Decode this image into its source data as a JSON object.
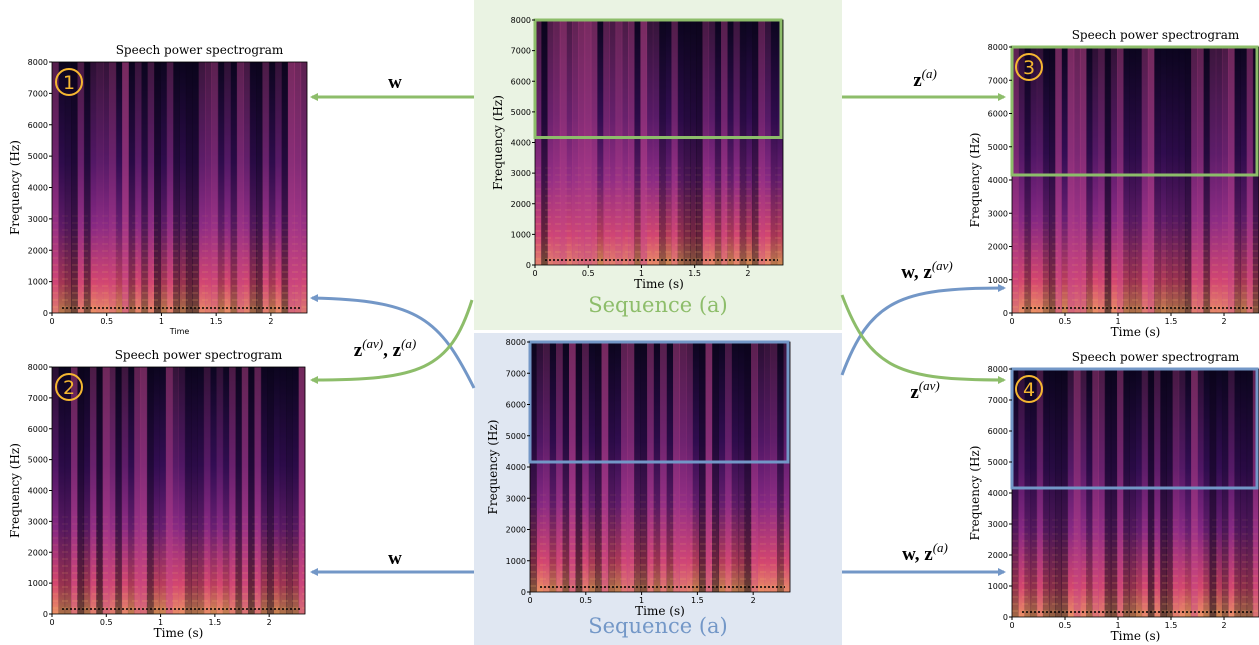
{
  "panels": [
    {
      "title": "Speech power spectrogram",
      "ylabel": "Frequency (Hz)",
      "xlabel": "Time",
      "badge": "1",
      "yticks": [
        "0",
        "1000",
        "2000",
        "3000",
        "4000",
        "5000",
        "6000",
        "7000",
        "8000"
      ],
      "xticks": [
        "0",
        "0.5",
        "1",
        "1.5",
        "2"
      ]
    },
    {
      "title": "Speech power spectrogram",
      "ylabel": "Frequency (Hz)",
      "xlabel": "Time (s)",
      "badge": "2",
      "yticks": [
        "0",
        "1000",
        "2000",
        "3000",
        "4000",
        "5000",
        "6000",
        "7000",
        "8000"
      ],
      "xticks": [
        "0",
        "0.5",
        "1",
        "1.5",
        "2"
      ]
    },
    {
      "ylabel": "Frequency (Hz)",
      "xlabel": "Time (s)",
      "caption": "Sequence (a)",
      "yticks": [
        "0",
        "1000",
        "2000",
        "3000",
        "4000",
        "5000",
        "6000",
        "7000",
        "8000"
      ],
      "xticks": [
        "0",
        "0.5",
        "1",
        "1.5",
        "2"
      ]
    },
    {
      "ylabel": "Frequency (Hz)",
      "xlabel": "Time (s)",
      "caption": "Sequence (a)",
      "yticks": [
        "0",
        "1000",
        "2000",
        "3000",
        "4000",
        "5000",
        "6000",
        "7000",
        "8000"
      ],
      "xticks": [
        "0",
        "0.5",
        "1",
        "1.5",
        "2"
      ]
    },
    {
      "title": "Speech power spectrogram",
      "ylabel": "Frequency (Hz)",
      "xlabel": "Time (s)",
      "badge": "3",
      "yticks": [
        "0",
        "1000",
        "2000",
        "3000",
        "4000",
        "5000",
        "6000",
        "7000",
        "8000"
      ],
      "xticks": [
        "0",
        "0.5",
        "1",
        "1.5",
        "2"
      ]
    },
    {
      "title": "Speech power spectrogram",
      "ylabel": "Frequency (Hz)",
      "xlabel": "Time (s)",
      "badge": "4",
      "yticks": [
        "0",
        "1000",
        "2000",
        "3000",
        "4000",
        "5000",
        "6000",
        "7000",
        "8000"
      ],
      "xticks": [
        "0",
        "0.5",
        "1",
        "1.5",
        "2"
      ]
    }
  ],
  "arrows": [
    {
      "label": [
        {
          "text": "w"
        }
      ]
    },
    {
      "label": [
        {
          "text": "w"
        }
      ]
    },
    {
      "label": [
        {
          "text": "z"
        },
        {
          "text": "(a)",
          "style": "sup"
        }
      ]
    },
    {
      "label": [
        {
          "text": "w, z"
        },
        {
          "text": "(a)",
          "style": "sup"
        }
      ]
    },
    {
      "label": [
        {
          "text": "z"
        },
        {
          "text": "(av)",
          "style": "sup"
        },
        {
          "text": ", z"
        },
        {
          "text": "(a)",
          "style": "sup"
        }
      ]
    },
    {
      "label": [
        {
          "text": "w, z"
        },
        {
          "text": "(av)",
          "style": "sup"
        }
      ]
    },
    {
      "label": [
        {
          "text": "z"
        },
        {
          "text": "(av)",
          "style": "sup"
        }
      ]
    }
  ]
}
